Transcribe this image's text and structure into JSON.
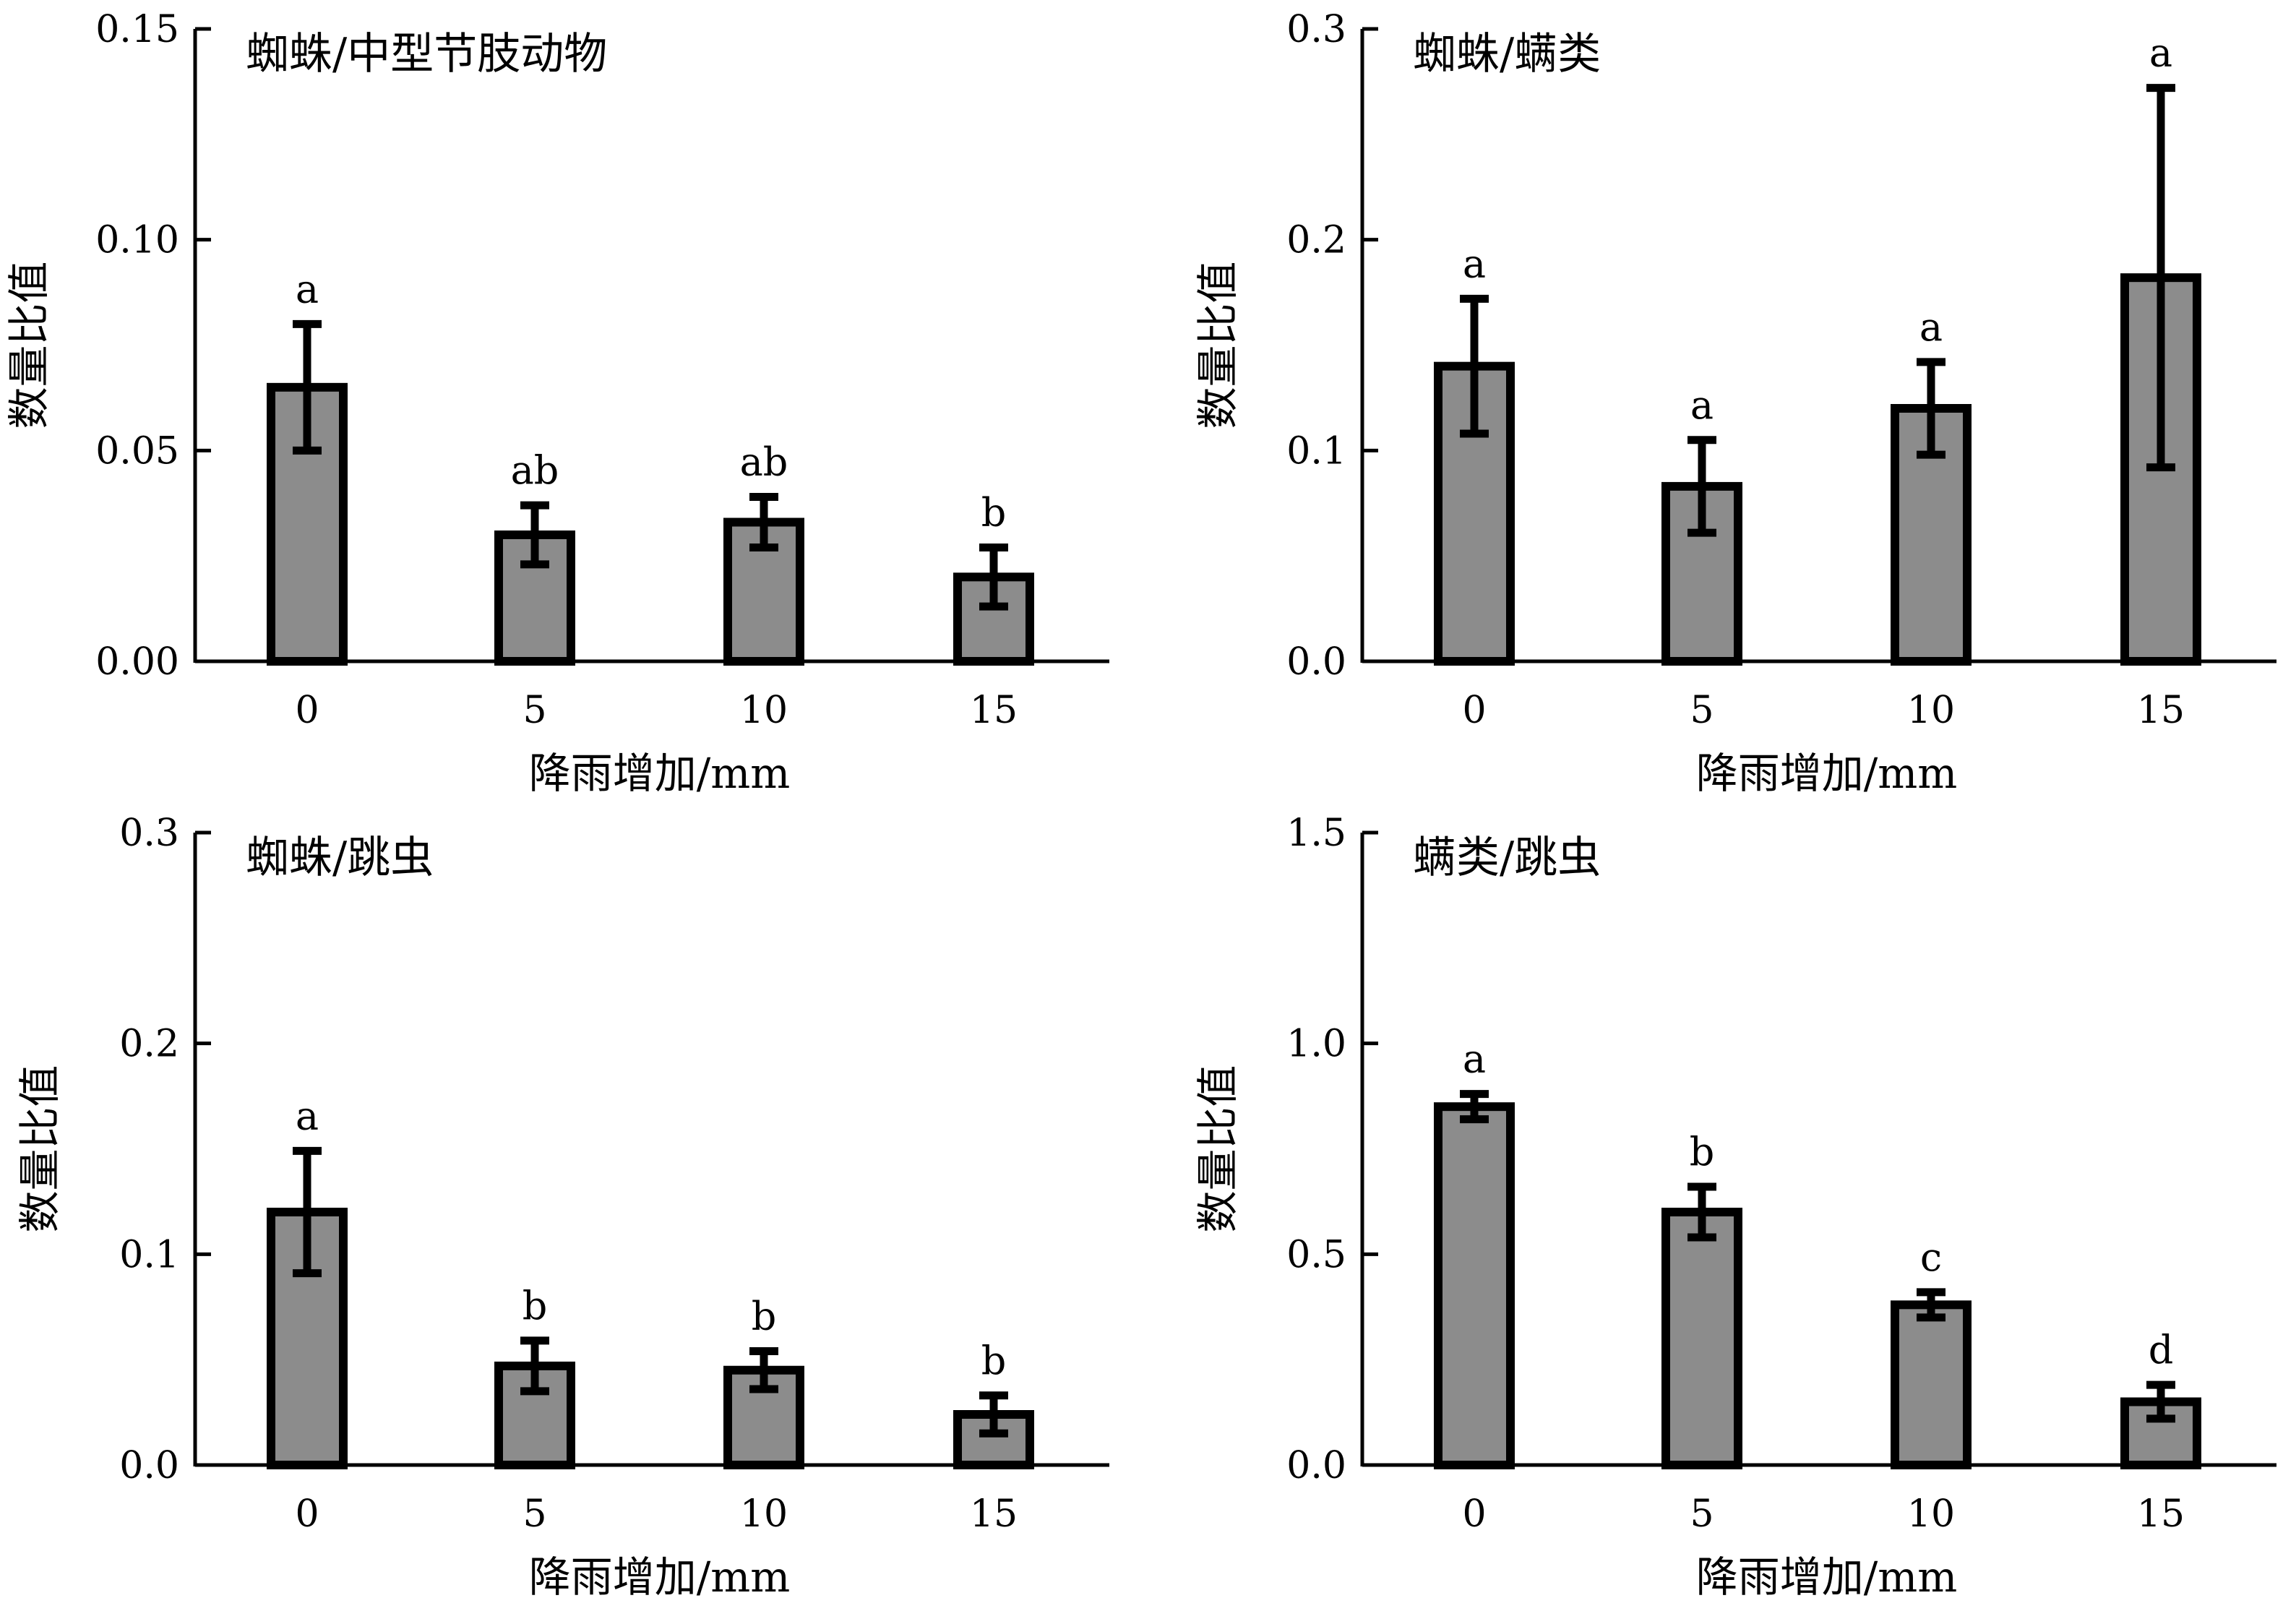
{
  "figure": {
    "bar_fill": "#8c8c8c",
    "edge_color": "#000000"
  },
  "chart_data": [
    {
      "type": "bar",
      "title": "蜘蛛/中型节肢动物",
      "xlabel": "降雨增加/mm",
      "ylabel": "数量比值",
      "categories": [
        "0",
        "5",
        "10",
        "15"
      ],
      "values": [
        0.065,
        0.03,
        0.033,
        0.02
      ],
      "errors": [
        0.015,
        0.007,
        0.006,
        0.007
      ],
      "significance": [
        "a",
        "ab",
        "ab",
        "b"
      ],
      "ylim": [
        0,
        0.15
      ],
      "yticks": [
        0.0,
        0.05,
        0.1,
        0.15
      ],
      "ytick_labels": [
        "0.00",
        "0.05",
        "0.10",
        "0.15"
      ],
      "grid": false
    },
    {
      "type": "bar",
      "title": "蜘蛛/螨类",
      "xlabel": "降雨增加/mm",
      "ylabel": "数量比值",
      "categories": [
        "0",
        "5",
        "10",
        "15"
      ],
      "values": [
        0.14,
        0.083,
        0.12,
        0.182
      ],
      "errors": [
        0.032,
        0.022,
        0.022,
        0.09
      ],
      "significance": [
        "a",
        "a",
        "a",
        "a"
      ],
      "ylim": [
        0,
        0.3
      ],
      "yticks": [
        0.0,
        0.1,
        0.2,
        0.3
      ],
      "ytick_labels": [
        "0.0",
        "0.1",
        "0.2",
        "0.3"
      ],
      "grid": false
    },
    {
      "type": "bar",
      "title": "蜘蛛/跳虫",
      "xlabel": "降雨增加/mm",
      "ylabel": "数量比值",
      "categories": [
        "0",
        "5",
        "10",
        "15"
      ],
      "values": [
        0.12,
        0.047,
        0.045,
        0.024
      ],
      "errors": [
        0.029,
        0.012,
        0.009,
        0.009
      ],
      "significance": [
        "a",
        "b",
        "b",
        "b"
      ],
      "ylim": [
        0,
        0.3
      ],
      "yticks": [
        0.0,
        0.1,
        0.2,
        0.3
      ],
      "ytick_labels": [
        "0.0",
        "0.1",
        "0.2",
        "0.3"
      ],
      "grid": false
    },
    {
      "type": "bar",
      "title": "螨类/跳虫",
      "xlabel": "降雨增加/mm",
      "ylabel": "数量比值",
      "categories": [
        "0",
        "5",
        "10",
        "15"
      ],
      "values": [
        0.85,
        0.6,
        0.38,
        0.15
      ],
      "errors": [
        0.03,
        0.06,
        0.03,
        0.04
      ],
      "significance": [
        "a",
        "b",
        "c",
        "d"
      ],
      "ylim": [
        0,
        1.5
      ],
      "yticks": [
        0.0,
        0.5,
        1.0,
        1.5
      ],
      "ytick_labels": [
        "0.0",
        "0.5",
        "1.0",
        "1.5"
      ],
      "grid": false
    }
  ]
}
